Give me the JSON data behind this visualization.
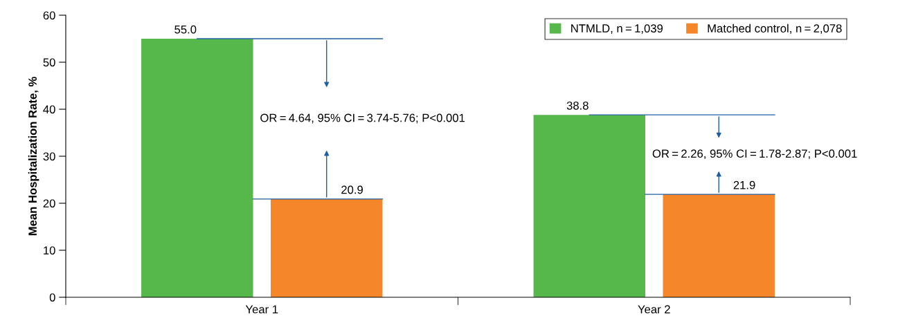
{
  "chart_data": {
    "type": "bar",
    "ylabel": "Mean Hospitalization Rate, %",
    "categories": [
      "Year 1",
      "Year 2"
    ],
    "series": [
      {
        "name": "NTMLD, n = 1,039",
        "color": "#56b84a",
        "values": [
          55.0,
          38.8
        ],
        "value_labels": [
          "55.0",
          "38.8"
        ]
      },
      {
        "name": "Matched control, n = 2,078",
        "color": "#f5862a",
        "values": [
          20.9,
          21.9
        ],
        "value_labels": [
          "20.9",
          "21.9"
        ]
      }
    ],
    "ylim": [
      0,
      60
    ],
    "yticks": [
      0,
      10,
      20,
      30,
      40,
      50,
      60
    ],
    "grid": false,
    "legend": "top right",
    "annotations": [
      "OR = 4.64, 95% CI = 3.74-5.76; P<0.001",
      "OR = 2.26, 95% CI = 1.78-2.87; P<0.001"
    ]
  }
}
